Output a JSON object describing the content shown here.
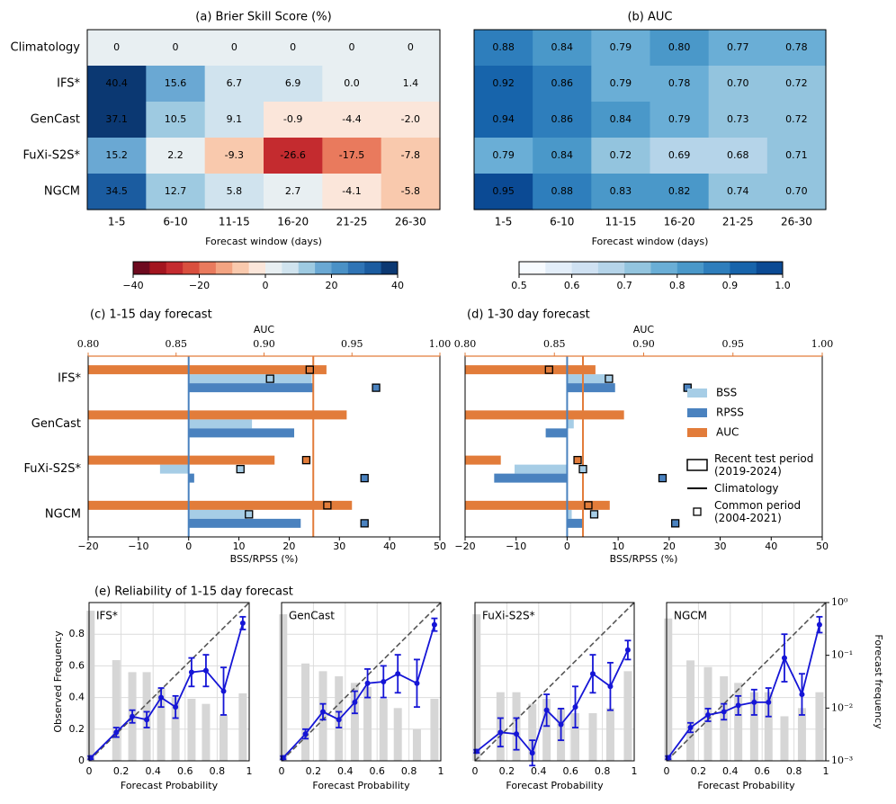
{
  "chart_data": [
    {
      "type": "heatmap",
      "title": "(a) Brier Skill Score (%)",
      "rows": [
        "Climatology",
        "IFS*",
        "GenCast",
        "FuXi-S2S*",
        "NGCM"
      ],
      "columns": [
        "1-5",
        "6-10",
        "11-15",
        "16-20",
        "21-25",
        "26-30"
      ],
      "xlabel": "Forecast window (days)",
      "values": [
        [
          0,
          0,
          0,
          0,
          0,
          0
        ],
        [
          40.4,
          15.6,
          6.7,
          6.9,
          0.0,
          1.4
        ],
        [
          37.1,
          10.5,
          9.1,
          -0.9,
          -4.4,
          -2.0
        ],
        [
          15.2,
          2.2,
          -9.3,
          -26.6,
          -17.5,
          -7.8
        ],
        [
          34.5,
          12.7,
          5.8,
          2.7,
          -4.1,
          -5.8
        ]
      ],
      "value_labels": [
        [
          "0",
          "0",
          "0",
          "0",
          "0",
          "0"
        ],
        [
          "40.4",
          "15.6",
          "6.7",
          "6.9",
          "0.0",
          "1.4"
        ],
        [
          "37.1",
          "10.5",
          "9.1",
          "-0.9",
          "-4.4",
          "-2.0"
        ],
        [
          "15.2",
          "2.2",
          "-9.3",
          "-26.6",
          "-17.5",
          "-7.8"
        ],
        [
          "34.5",
          "12.7",
          "5.8",
          "2.7",
          "-4.1",
          "-5.8"
        ]
      ],
      "clim": [
        -40,
        40
      ],
      "colormap": [
        "#6e0a1f",
        "#a3151f",
        "#c42b2f",
        "#d94f3e",
        "#e97a5d",
        "#f3a482",
        "#f9c9ad",
        "#fbe6da",
        "#e8eff2",
        "#d0e3ee",
        "#9ecae1",
        "#6aa8d3",
        "#4a91c6",
        "#2f74b5",
        "#1b5ca0",
        "#0b3872"
      ],
      "cticks": [
        {
          "value": -40,
          "label": "−40"
        },
        {
          "value": -20,
          "label": "−20"
        },
        0,
        20,
        40
      ]
    },
    {
      "type": "heatmap",
      "title": "(b) AUC",
      "rows": [
        "Climatology",
        "IFS*",
        "GenCast",
        "FuXi-S2S*",
        "NGCM"
      ],
      "columns": [
        "1-5",
        "6-10",
        "11-15",
        "16-20",
        "21-25",
        "26-30"
      ],
      "xlabel": "Forecast window (days)",
      "values": [
        [
          0.88,
          0.84,
          0.79,
          0.8,
          0.77,
          0.78
        ],
        [
          0.92,
          0.86,
          0.79,
          0.78,
          0.7,
          0.72
        ],
        [
          0.94,
          0.86,
          0.84,
          0.79,
          0.73,
          0.72
        ],
        [
          0.79,
          0.84,
          0.72,
          0.69,
          0.68,
          0.71
        ],
        [
          0.95,
          0.88,
          0.83,
          0.82,
          0.74,
          0.7
        ]
      ],
      "value_labels": [
        [
          "0.88",
          "0.84",
          "0.79",
          "0.80",
          "0.77",
          "0.78"
        ],
        [
          "0.92",
          "0.86",
          "0.79",
          "0.78",
          "0.70",
          "0.72"
        ],
        [
          "0.94",
          "0.86",
          "0.84",
          "0.79",
          "0.73",
          "0.72"
        ],
        [
          "0.79",
          "0.84",
          "0.72",
          "0.69",
          "0.68",
          "0.71"
        ],
        [
          "0.95",
          "0.88",
          "0.83",
          "0.82",
          "0.74",
          "0.70"
        ]
      ],
      "clim": [
        0.5,
        1
      ],
      "colormap": [
        "#f7fbff",
        "#e3eef9",
        "#cfe1f2",
        "#b5d4e9",
        "#93c4de",
        "#6aaed6",
        "#4a98c9",
        "#2e7ebc",
        "#1764ab",
        "#0b4a94"
      ],
      "cticks": [
        0.5,
        0.6,
        0.7,
        0.8,
        0.9,
        {
          "value": 1,
          "label": "1.0"
        }
      ]
    },
    {
      "type": "hbar",
      "title": "(c) 1-15 day forecast",
      "categories": [
        "IFS*",
        "GenCast",
        "FuXi-S2S*",
        "NGCM"
      ],
      "xlabel": "BSS/RPSS (%)",
      "x2label": "AUC",
      "xlim": [
        -20,
        50
      ],
      "xticks": [
        {
          "value": -20,
          "label": "−20"
        },
        {
          "value": -10,
          "label": "−10"
        },
        0,
        10,
        20,
        30,
        40,
        50
      ],
      "x2lim": [
        0.8,
        1.0
      ],
      "x2ticks": [
        {
          "value": 0.8,
          "label": "0.80"
        },
        0.85,
        {
          "value": 0.9,
          "label": "0.90"
        },
        0.95,
        {
          "value": 1,
          "label": "1.00"
        }
      ],
      "series": [
        {
          "color": "#a6cde6",
          "values": [
            24.5,
            12.6,
            -5.7,
            11.7
          ],
          "common_values": [
            16.2,
            null,
            10.3,
            12.0
          ]
        },
        {
          "color": "#4a82bf",
          "values": [
            24.9,
            21.0,
            1.1,
            22.3
          ],
          "common_values": [
            37.3,
            null,
            35.0,
            35.0
          ]
        },
        {
          "color": "#e27c3a",
          "axis": "x2",
          "values": [
            0.9355,
            0.947,
            0.906,
            0.95
          ],
          "common_values": [
            0.926,
            null,
            0.924,
            0.936
          ]
        }
      ],
      "reference_lines": [
        {
          "value": 0,
          "color": "#4a82bf"
        },
        {
          "value": 0.928,
          "axis": "x2",
          "color": "#e27c3a"
        }
      ]
    },
    {
      "type": "hbar",
      "title": "(d) 1-30 day forecast",
      "categories": [
        null,
        null,
        null,
        null
      ],
      "xlabel": "BSS/RPSS (%)",
      "x2label": "AUC",
      "xlim": [
        -20,
        50
      ],
      "xticks": [
        {
          "value": -20,
          "label": "−20"
        },
        {
          "value": -10,
          "label": "−10"
        },
        0,
        10,
        20,
        30,
        40,
        50
      ],
      "x2lim": [
        0.8,
        1.0
      ],
      "x2ticks": [
        {
          "value": 0.8,
          "label": "0.80"
        },
        0.85,
        {
          "value": 0.9,
          "label": "0.90"
        },
        0.95,
        {
          "value": 1,
          "label": "1.00"
        }
      ],
      "series": [
        {
          "name": "BSS",
          "color": "#a6cde6",
          "values": [
            7.6,
            1.3,
            -10.3,
            0.9
          ],
          "common_values": [
            8.2,
            null,
            3.1,
            5.3
          ]
        },
        {
          "name": "RPSS",
          "color": "#4a82bf",
          "values": [
            9.4,
            -4.2,
            -14.3,
            3.1
          ],
          "common_values": [
            23.6,
            null,
            18.7,
            21.2
          ]
        },
        {
          "name": "AUC",
          "color": "#e27c3a",
          "axis": "x2",
          "values": [
            0.873,
            0.889,
            0.82,
            0.881
          ],
          "common_values": [
            0.847,
            null,
            0.863,
            0.869
          ]
        }
      ],
      "reference_lines": [
        {
          "value": 0,
          "color": "#4a82bf"
        },
        {
          "value": 0.866,
          "axis": "x2",
          "color": "#e27c3a"
        }
      ],
      "legend": "right",
      "legend_notes": [
        "Recent test period (2019-2024)",
        "Climatology",
        "Common period (2004-2021)"
      ]
    },
    {
      "type": "reliability",
      "suptitle": "(e) Reliability of 1-15 day forecast",
      "title": "IFS*",
      "xlabel": "Forecast Probability",
      "ylabel": "Observed Frequency",
      "grid": true,
      "color": "#1515d6",
      "xlim": [
        0,
        1
      ],
      "xticks": [
        0,
        0.2,
        0.4,
        0.6,
        0.8,
        1
      ],
      "ylim": [
        0,
        1
      ],
      "yticks": [
        0,
        0.2,
        0.4,
        0.6,
        0.8
      ],
      "ytick_labels": true,
      "y2lim": [
        0.001,
        1
      ],
      "y2log": true,
      "x": [
        0.01,
        0.17,
        0.27,
        0.36,
        0.45,
        0.54,
        0.64,
        0.73,
        0.84,
        0.96
      ],
      "values": [
        0.02,
        0.18,
        0.28,
        0.26,
        0.4,
        0.34,
        0.56,
        0.57,
        0.44,
        0.87
      ],
      "errors": [
        0.01,
        0.03,
        0.04,
        0.05,
        0.06,
        0.07,
        0.09,
        0.1,
        0.15,
        0.04
      ],
      "frequency": [
        0.7,
        0.081,
        0.048,
        0.048,
        0.023,
        0.016,
        0.015,
        0.012,
        0.0075,
        0.019
      ]
    },
    {
      "type": "reliability",
      "title": "GenCast",
      "xlabel": "Forecast Probability",
      "grid": true,
      "color": "#1515d6",
      "xlim": [
        0,
        1
      ],
      "xticks": [
        0,
        0.2,
        0.4,
        0.6,
        0.8,
        1
      ],
      "ylim": [
        0,
        1
      ],
      "yticks": [
        0,
        0.2,
        0.4,
        0.6,
        0.8
      ],
      "ytick_labels": false,
      "y2lim": [
        0.001,
        1
      ],
      "y2log": true,
      "x": [
        0.01,
        0.15,
        0.26,
        0.36,
        0.46,
        0.54,
        0.64,
        0.73,
        0.85,
        0.96
      ],
      "values": [
        0.02,
        0.17,
        0.31,
        0.26,
        0.37,
        0.49,
        0.5,
        0.55,
        0.49,
        0.86
      ],
      "errors": [
        0.01,
        0.03,
        0.05,
        0.05,
        0.07,
        0.09,
        0.1,
        0.12,
        0.15,
        0.04
      ],
      "frequency": [
        0.6,
        0.07,
        0.05,
        0.04,
        0.03,
        0.025,
        0.015,
        0.01,
        0.004,
        0.015
      ]
    },
    {
      "type": "reliability",
      "title": "FuXi-S2S*",
      "xlabel": "Forecast Probability",
      "grid": true,
      "color": "#1515d6",
      "xlim": [
        0,
        1
      ],
      "xticks": [
        0,
        0.2,
        0.4,
        0.6,
        0.8,
        1
      ],
      "ylim": [
        0,
        1
      ],
      "yticks": [
        0,
        0.2,
        0.4,
        0.6,
        0.8
      ],
      "ytick_labels": false,
      "y2lim": [
        0.001,
        1
      ],
      "y2log": true,
      "x": [
        0.01,
        0.16,
        0.26,
        0.36,
        0.45,
        0.54,
        0.63,
        0.74,
        0.85,
        0.96
      ],
      "values": [
        0.06,
        0.18,
        0.17,
        0.05,
        0.32,
        0.23,
        0.34,
        0.55,
        0.47,
        0.7
      ],
      "errors": [
        0.01,
        0.09,
        0.1,
        0.08,
        0.1,
        0.1,
        0.13,
        0.12,
        0.15,
        0.06
      ],
      "frequency": [
        0.6,
        0.02,
        0.02,
        0.012,
        0.015,
        0.01,
        0.008,
        0.008,
        0.01,
        0.05
      ]
    },
    {
      "type": "reliability",
      "title": "NGCM",
      "xlabel": "Forecast Probability",
      "y2label": "Forecast frequency",
      "grid": true,
      "color": "#1515d6",
      "xlim": [
        0,
        1
      ],
      "xticks": [
        0,
        0.2,
        0.4,
        0.6,
        0.8,
        1
      ],
      "ylim": [
        0,
        1
      ],
      "yticks": [
        0,
        0.2,
        0.4,
        0.6,
        0.8
      ],
      "ytick_labels": false,
      "y2lim": [
        0.001,
        1
      ],
      "y2log": true,
      "y2ticks": [
        {
          "value": 0.001,
          "label": "10⁻³"
        },
        {
          "value": 0.01,
          "label": "10⁻²"
        },
        {
          "value": 0.1,
          "label": "10⁻¹"
        },
        {
          "value": 1,
          "label": "10⁰"
        }
      ],
      "x": [
        0.01,
        0.15,
        0.26,
        0.36,
        0.45,
        0.55,
        0.64,
        0.74,
        0.85,
        0.96
      ],
      "values": [
        0.02,
        0.21,
        0.29,
        0.31,
        0.35,
        0.37,
        0.37,
        0.65,
        0.42,
        0.86
      ],
      "errors": [
        0.01,
        0.03,
        0.04,
        0.05,
        0.06,
        0.08,
        0.09,
        0.15,
        0.13,
        0.05
      ],
      "frequency": [
        0.5,
        0.08,
        0.06,
        0.04,
        0.03,
        0.02,
        0.02,
        0.007,
        0.01,
        0.02
      ]
    }
  ]
}
